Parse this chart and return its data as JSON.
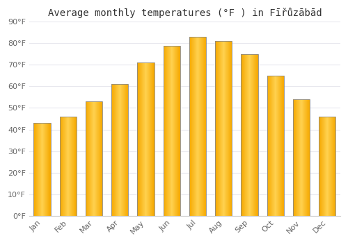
{
  "months": [
    "Jan",
    "Feb",
    "Mar",
    "Apr",
    "May",
    "Jun",
    "Jul",
    "Aug",
    "Sep",
    "Oct",
    "Nov",
    "Dec"
  ],
  "values": [
    43,
    46,
    53,
    61,
    71,
    79,
    83,
    81,
    75,
    65,
    54,
    46
  ],
  "bar_color_center": "#FFD050",
  "bar_color_edge": "#F5A800",
  "bar_border_color": "#888888",
  "title": "Average monthly temperatures (°F ) in Fīřůzābād",
  "ylabel_ticks": [
    "0°F",
    "10°F",
    "20°F",
    "30°F",
    "40°F",
    "50°F",
    "60°F",
    "70°F",
    "80°F",
    "90°F"
  ],
  "ytick_values": [
    0,
    10,
    20,
    30,
    40,
    50,
    60,
    70,
    80,
    90
  ],
  "ylim": [
    0,
    90
  ],
  "background_color": "#ffffff",
  "title_fontsize": 10,
  "tick_fontsize": 8,
  "grid_color": "#e8e8ee"
}
